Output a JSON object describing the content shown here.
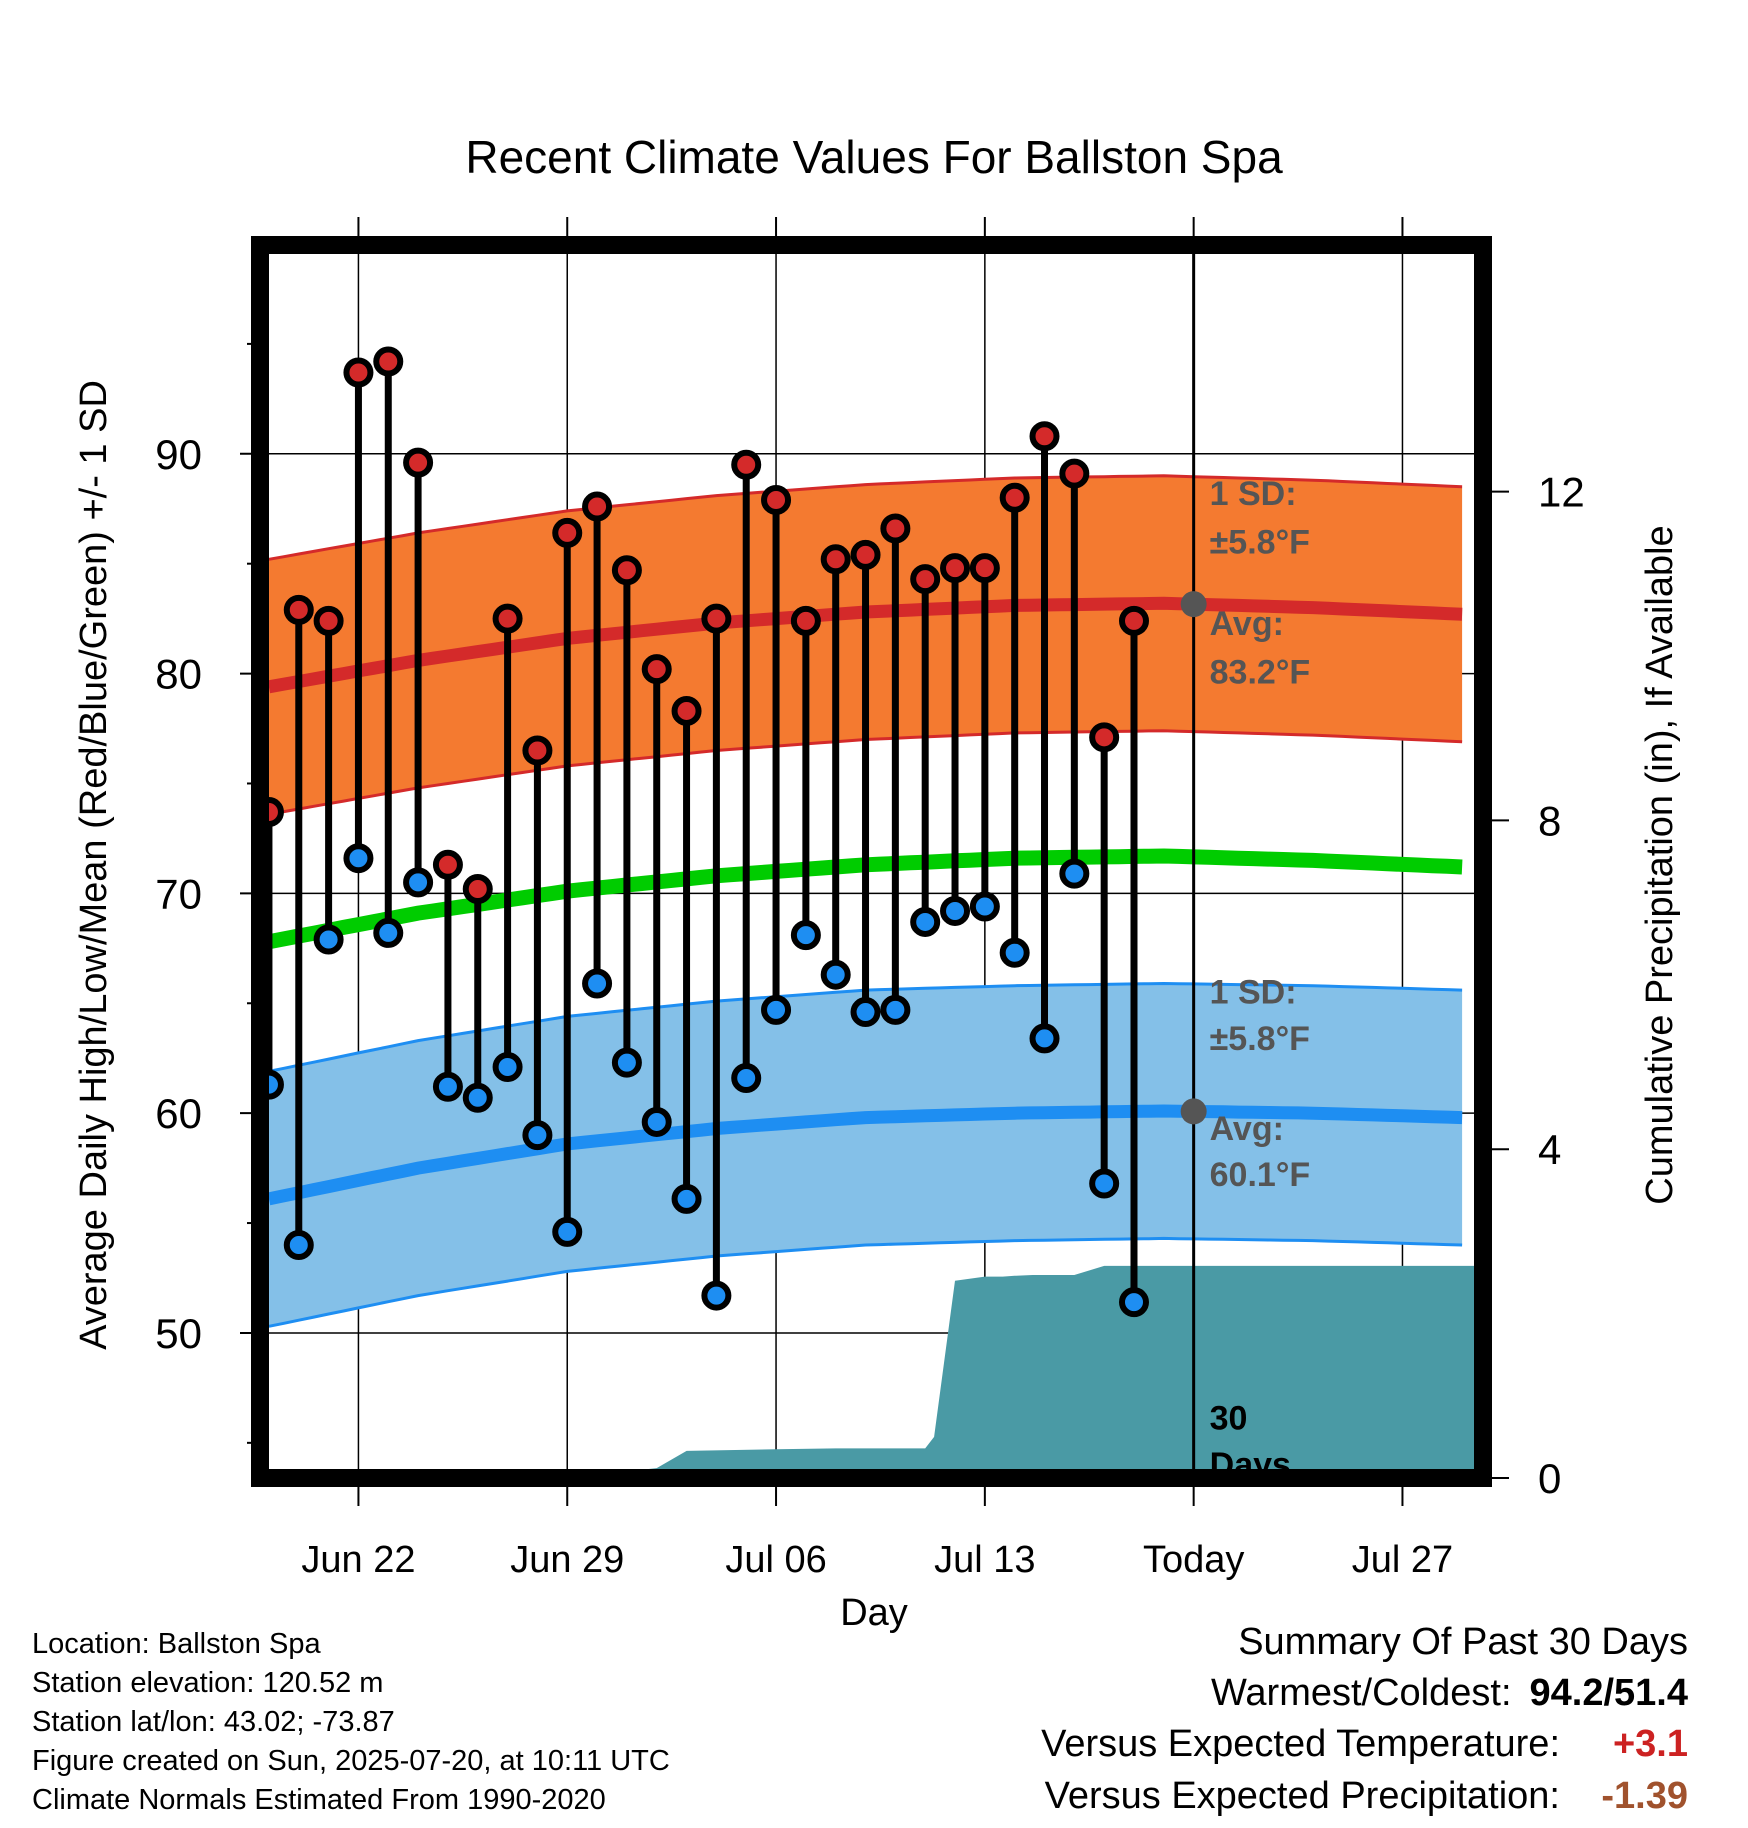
{
  "chart_data": {
    "type": "line",
    "title": "Recent Climate Values For Ballston Spa",
    "xlabel": "Day",
    "ylabel_left": "Average Daily High/Low/Mean (Red/Blue/Green) +/- 1 SD",
    "ylabel_right": "Cumulative Precipitation (in), If Available",
    "x_ticks": [
      {
        "day": 3,
        "label": "Jun 22"
      },
      {
        "day": 10,
        "label": "Jun 29"
      },
      {
        "day": 17,
        "label": "Jul 06"
      },
      {
        "day": 24,
        "label": "Jul 13"
      },
      {
        "day": 31,
        "label": "Today"
      },
      {
        "day": 38,
        "label": "Jul 27"
      }
    ],
    "xlim": [
      -0.3,
      40.7
    ],
    "today_index": 31,
    "ylim": [
      43.4,
      99.5
    ],
    "y_ticks": [
      50,
      60,
      70,
      80,
      90
    ],
    "y_minor_ticks": [
      45,
      55,
      65,
      75,
      85,
      95
    ],
    "y2_ticks": [
      0,
      4,
      8,
      12
    ],
    "y2lim": [
      0,
      15.0
    ],
    "daily_high": [
      73.7,
      82.9,
      82.4,
      93.7,
      94.2,
      89.6,
      71.3,
      70.2,
      82.5,
      76.5,
      86.4,
      87.6,
      84.7,
      80.2,
      78.3,
      82.5,
      89.5,
      87.9,
      82.4,
      85.2,
      85.4,
      86.6,
      84.3,
      84.8,
      84.8,
      88.0,
      90.8,
      89.1,
      77.1,
      82.4
    ],
    "daily_low": [
      61.3,
      54.0,
      67.9,
      71.6,
      68.2,
      70.5,
      61.2,
      60.7,
      62.1,
      59.0,
      54.6,
      65.9,
      62.3,
      59.6,
      56.1,
      51.7,
      61.6,
      64.7,
      68.1,
      66.3,
      64.6,
      64.7,
      68.7,
      69.2,
      69.4,
      67.3,
      63.4,
      70.9,
      56.8,
      51.4
    ],
    "normal_high_days": [
      0,
      5,
      10,
      15,
      20,
      25,
      30,
      35,
      40
    ],
    "normal_high": [
      79.4,
      80.6,
      81.6,
      82.3,
      82.8,
      83.1,
      83.2,
      83.0,
      82.7
    ],
    "normal_low": [
      56.1,
      57.5,
      58.6,
      59.3,
      59.8,
      60.0,
      60.1,
      60.0,
      59.8
    ],
    "normal_mean": [
      67.8,
      69.1,
      70.1,
      70.8,
      71.3,
      71.6,
      71.7,
      71.5,
      71.2
    ],
    "sd": 5.8,
    "precip_days": [
      0,
      11,
      11.5,
      12.5,
      13,
      14,
      17,
      19,
      21,
      22,
      22.3,
      23,
      24,
      24.6,
      25,
      25.6,
      27,
      28,
      31,
      40.7
    ],
    "precip_cum": [
      0,
      0,
      0.05,
      0.1,
      0.12,
      0.33,
      0.35,
      0.36,
      0.36,
      0.36,
      0.5,
      2.4,
      2.45,
      2.45,
      2.46,
      2.47,
      2.47,
      2.58,
      2.58,
      2.58
    ],
    "annotations": {
      "high_sd_title": "1 SD:",
      "high_sd_value": "±5.8°F",
      "high_avg_title": "Avg:",
      "high_avg_value": "83.2°F",
      "low_sd_title": "1 SD:",
      "low_sd_value": "±5.8°F",
      "low_avg_title": "Avg:",
      "low_avg_value": "60.1°F",
      "days_line1": "30",
      "days_line2": "Days"
    },
    "colors": {
      "high_band": "#f47a30",
      "high_line": "#d42a2a",
      "low_band": "#84c0e8",
      "low_line": "#1e8ef2",
      "mean_line": "#00cc00",
      "precip_fill": "#4a9aa5",
      "high_dot": "#d42a2a",
      "low_dot": "#1e8ef2",
      "annotation_text": "#555555"
    }
  },
  "footer": {
    "location": "Location: Ballston Spa",
    "elevation": "Station elevation: 120.52 m",
    "latlon": "Station lat/lon: 43.02; -73.87",
    "created": "Figure created on Sun, 2025-07-20, at 10:11 UTC",
    "normals": "Climate Normals Estimated From 1990-2020"
  },
  "summary": {
    "title": "Summary Of Past 30 Days",
    "warm_cold_label": "Warmest/Coldest:",
    "warm_cold_value": "94.2/51.4",
    "temp_label": "Versus Expected Temperature:",
    "temp_value": "+3.1",
    "temp_color": "#cc2222",
    "precip_label": "Versus Expected Precipitation:",
    "precip_value": "-1.39",
    "precip_color": "#a0522d"
  }
}
